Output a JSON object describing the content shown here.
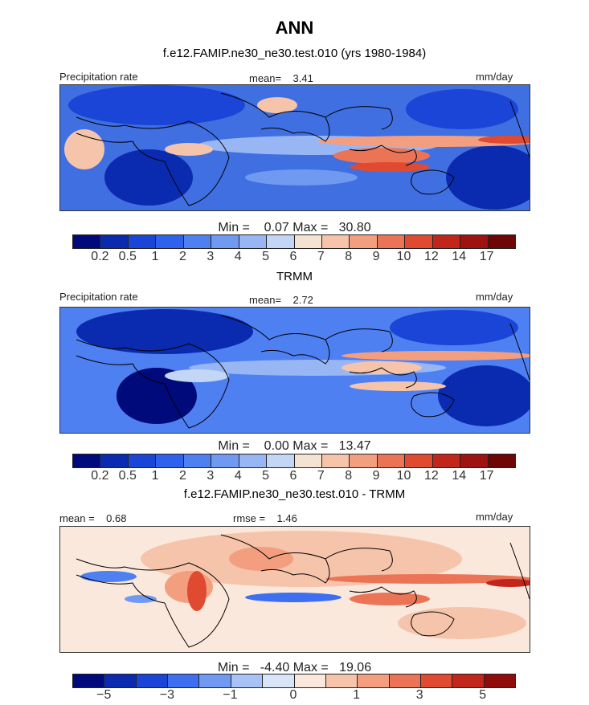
{
  "title": "ANN",
  "panels": [
    {
      "heading": "f.e12.FAMIP.ne30_ne30.test.010 (yrs 1980-1984)",
      "left_label": "Precipitation rate",
      "center_label": "mean=    3.41",
      "right_label": "mm/day",
      "minmax": "Min =    0.07 Max =   30.80",
      "colorbar_labels": [
        "0.2",
        "0.5",
        "1",
        "2",
        "3",
        "4",
        "5",
        "6",
        "7",
        "8",
        "9",
        "10",
        "12",
        "14",
        "17"
      ]
    },
    {
      "heading": "TRMM",
      "left_label": "Precipitation rate",
      "center_label": "mean=    2.72",
      "right_label": "mm/day",
      "minmax": "Min =    0.00 Max =   13.47",
      "colorbar_labels": [
        "0.2",
        "0.5",
        "1",
        "2",
        "3",
        "4",
        "5",
        "6",
        "7",
        "8",
        "9",
        "10",
        "12",
        "14",
        "17"
      ]
    },
    {
      "heading": "f.e12.FAMIP.ne30_ne30.test.010 - TRMM",
      "left_label": "mean =    0.68",
      "center_label": "rmse =    1.46",
      "right_label": "mm/day",
      "minmax": "Min =   -4.40 Max =   19.06",
      "colorbar_labels": [
        "−5",
        "−3",
        "−1",
        "0",
        "1",
        "3",
        "5"
      ]
    }
  ],
  "colors": {
    "precip_scale": [
      "#000a7a",
      "#0a2bb0",
      "#1a45d6",
      "#2f62ec",
      "#4e80f2",
      "#7099f2",
      "#98b6f4",
      "#c4d6f6",
      "#f4e2d2",
      "#f6c4aa",
      "#f39f7f",
      "#ec7456",
      "#e04a30",
      "#c2261a",
      "#9e1310",
      "#6e0606"
    ],
    "diff_scale": [
      "#000a7a",
      "#0a2bb0",
      "#1a45d6",
      "#3d6ff0",
      "#7099f2",
      "#a9c2f5",
      "#d8e4f8",
      "#fbe8dc",
      "#f6c4aa",
      "#f39f7f",
      "#ec7456",
      "#e04a30",
      "#c2261a",
      "#8e0c0a"
    ],
    "land_outline": "#000000"
  }
}
